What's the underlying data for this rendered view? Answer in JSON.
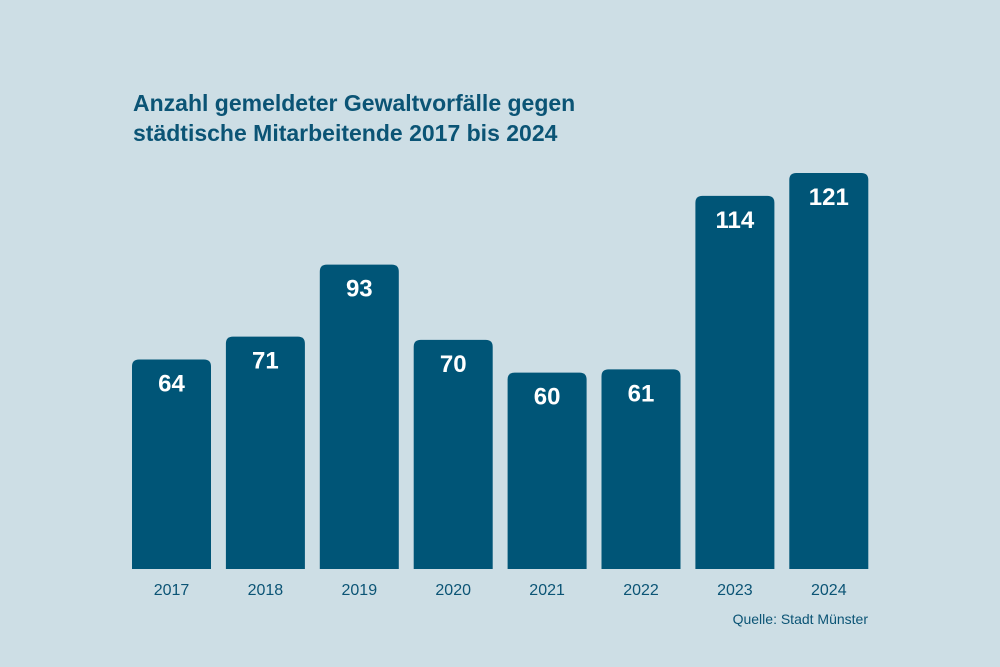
{
  "chart_data": {
    "type": "bar",
    "title_lines": [
      "Anzahl gemeldeter Gewaltvorfälle gegen",
      "städtische Mitarbeitende 2017 bis 2024"
    ],
    "categories": [
      "2017",
      "2018",
      "2019",
      "2020",
      "2021",
      "2022",
      "2023",
      "2024"
    ],
    "values": [
      64,
      71,
      93,
      70,
      60,
      61,
      114,
      121
    ],
    "value_labels": [
      "64",
      "71",
      "93",
      "70",
      "60",
      "61",
      "114",
      "121"
    ],
    "xlabel": "",
    "ylabel": "",
    "ylim": [
      0,
      121
    ],
    "grid": false,
    "legend": "none",
    "source": "Quelle: Stadt Münster",
    "colors": {
      "bar": "#005577",
      "background": "#cddee5",
      "text": "#0b5475",
      "value_label": "#ffffff"
    }
  }
}
